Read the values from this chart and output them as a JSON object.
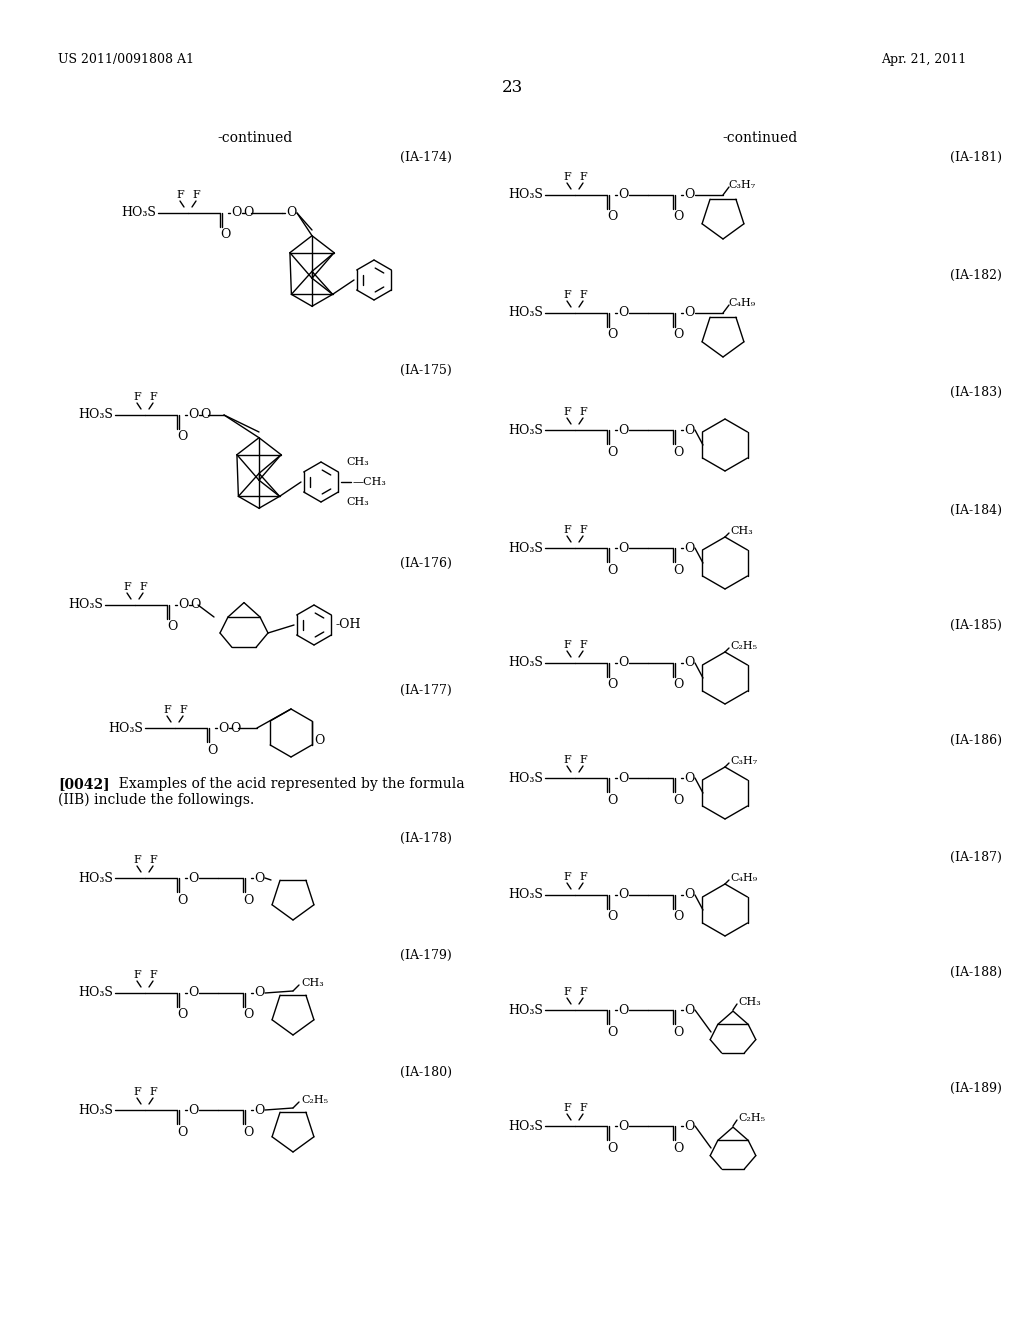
{
  "page_header_left": "US 2011/0091808 A1",
  "page_header_right": "Apr. 21, 2011",
  "page_number": "23",
  "bg_color": "#ffffff",
  "text_color": "#000000",
  "continued_left": "-continued",
  "continued_right": "-continued",
  "paragraph_bold": "[0042]",
  "paragraph_rest": "  Examples of the acid represented by the formula",
  "paragraph_line2": "(IIB) include the followings.",
  "labels_left": [
    "(IA-174)",
    "(IA-175)",
    "(IA-176)",
    "(IA-177)",
    "(IA-178)",
    "(IA-179)",
    "(IA-180)"
  ],
  "labels_right": [
    "(IA-181)",
    "(IA-182)",
    "(IA-183)",
    "(IA-184)",
    "(IA-185)",
    "(IA-186)",
    "(IA-187)",
    "(IA-188)",
    "(IA-189)"
  ]
}
